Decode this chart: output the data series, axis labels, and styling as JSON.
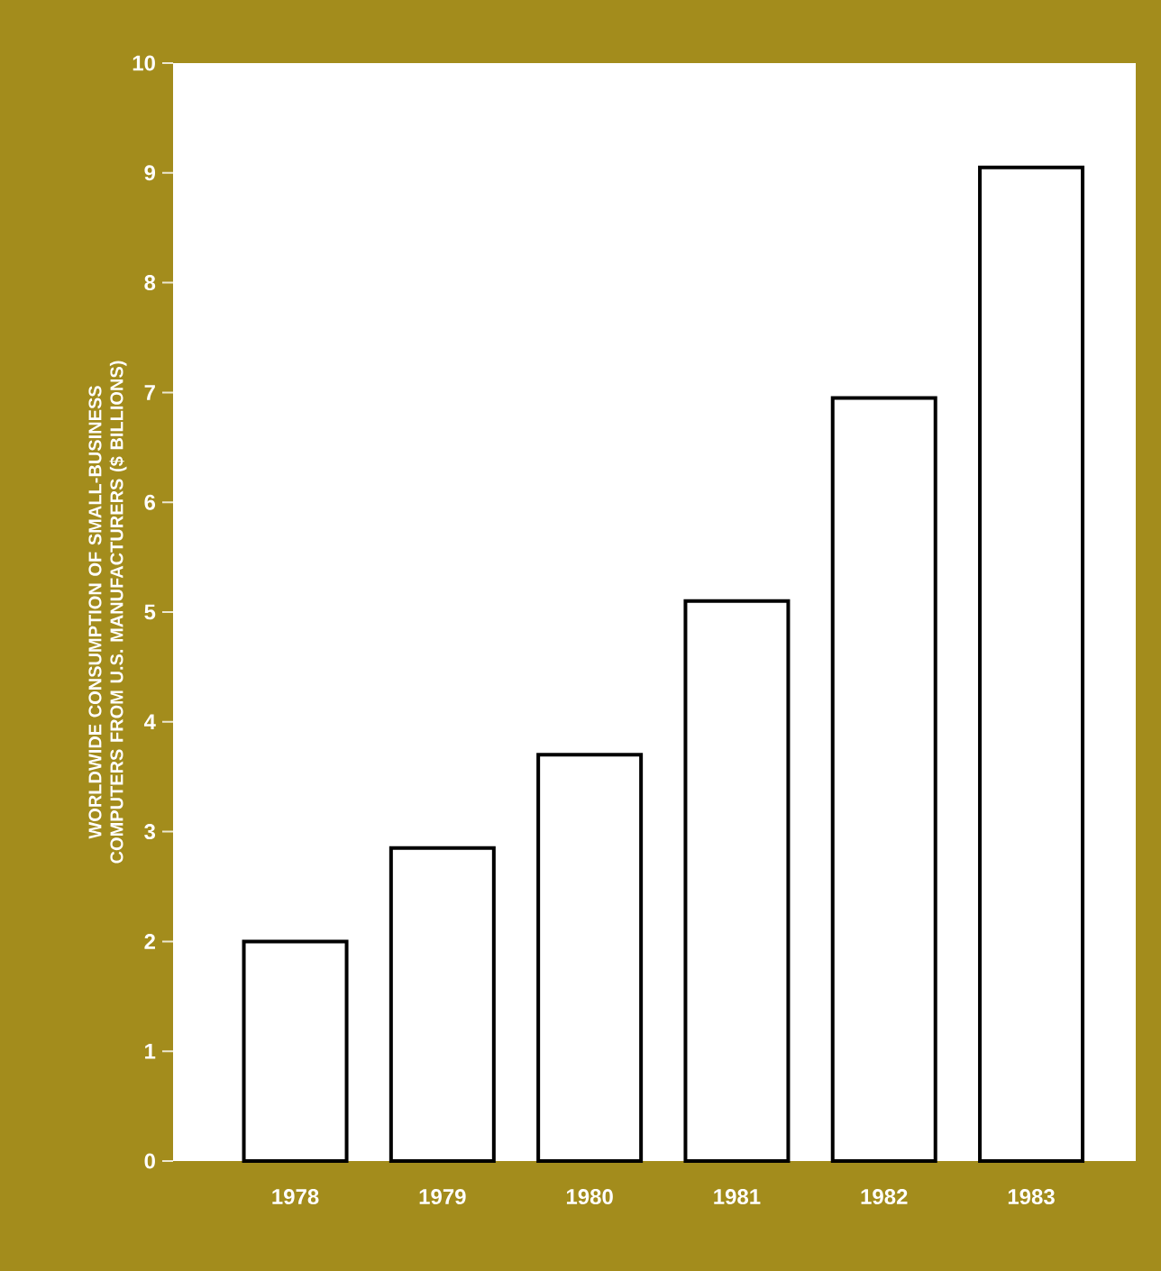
{
  "chart_data": {
    "type": "bar",
    "ylabel": "WORLDWIDE CONSUMPTION OF SMALL-BUSINESS COMPUTERS FROM U.S. MANUFACTURERS ($ BILLIONS)",
    "categories": [
      "1978",
      "1979",
      "1980",
      "1981",
      "1982",
      "1983"
    ],
    "values": [
      2.0,
      2.85,
      3.7,
      5.1,
      6.95,
      9.05
    ],
    "color": "#ffffff",
    "ylim": [
      0,
      10
    ],
    "yticks": [
      0,
      1,
      2,
      3,
      4,
      5,
      6,
      7,
      8,
      9,
      10
    ],
    "grid": false
  }
}
